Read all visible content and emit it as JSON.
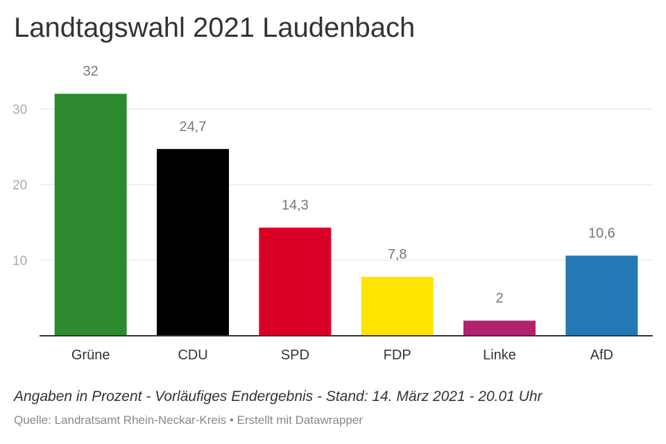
{
  "chart_data": {
    "type": "bar",
    "title": "Landtagswahl 2021 Laudenbach",
    "categories": [
      "Grüne",
      "CDU",
      "SPD",
      "FDP",
      "Linke",
      "AfD"
    ],
    "values": [
      32,
      24.7,
      14.3,
      7.8,
      2,
      10.6
    ],
    "value_labels": [
      "32",
      "24,7",
      "14,3",
      "7,8",
      "2",
      "10,6"
    ],
    "colors": [
      "#2e8a2e",
      "#000000",
      "#d90027",
      "#ffe400",
      "#b1226f",
      "#2478b4"
    ],
    "ylim": [
      0,
      32
    ],
    "yticks": [
      10,
      20,
      30
    ],
    "ytick_labels": [
      "10",
      "20",
      "30"
    ],
    "grid": true,
    "xlabel": "",
    "ylabel": ""
  },
  "footnote": "Angaben in Prozent - Vorläufiges Endergebnis - Stand: 14. März 2021 - 20.01 Uhr",
  "source": "Quelle: Landratsamt Rhein-Neckar-Kreis • Erstellt mit Datawrapper"
}
